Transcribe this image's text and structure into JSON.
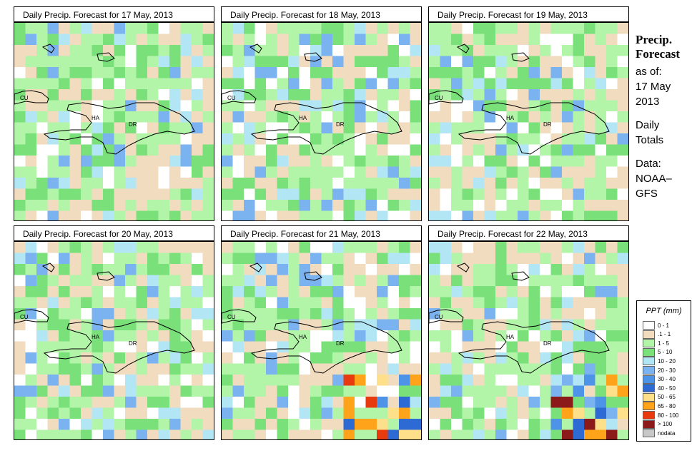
{
  "panels": [
    {
      "title": "Daily Precip. Forecast for  17 May, 2013"
    },
    {
      "title": "Daily Precip. Forecast for  18 May, 2013"
    },
    {
      "title": "Daily Precip. Forecast for  19 May, 2013"
    },
    {
      "title": "Daily Precip. Forecast for  20 May, 2013"
    },
    {
      "title": "Daily Precip. Forecast for  21 May, 2013"
    },
    {
      "title": "Daily Precip. Forecast for  22 May, 2013"
    }
  ],
  "map_labels": {
    "cuba": "CU",
    "haiti": "HA",
    "dr": "DR"
  },
  "side": {
    "heading1": "Precip.",
    "heading2": "Forecast",
    "asof": "as of:",
    "date1": "17 May",
    "date2": "2013",
    "totals1": "Daily",
    "totals2": "Totals",
    "data1": "Data:",
    "data2": "NOAA–",
    "data3": "GFS"
  },
  "legend": {
    "title": "PPT (mm)",
    "items": [
      {
        "label": "0 - 1",
        "color": "#ffffff"
      },
      {
        "label": ".1 - 1",
        "color": "#f2dcc0"
      },
      {
        "label": "1 - 5",
        "color": "#b3f5a8"
      },
      {
        "label": "5 - 10",
        "color": "#7ae07a"
      },
      {
        "label": "10 - 20",
        "color": "#b3e6f5"
      },
      {
        "label": "20 - 30",
        "color": "#7ab3f0"
      },
      {
        "label": "30 - 40",
        "color": "#4d94e8"
      },
      {
        "label": "40 - 50",
        "color": "#2e6ad4"
      },
      {
        "label": "50 - 65",
        "color": "#ffe08a"
      },
      {
        "label": "65 - 80",
        "color": "#ffa31a"
      },
      {
        "label": "80 - 100",
        "color": "#e83a0f"
      },
      {
        "label": "> 100",
        "color": "#8c1a1a"
      },
      {
        "label": "nodata",
        "color": "#c8c8c8"
      }
    ]
  }
}
